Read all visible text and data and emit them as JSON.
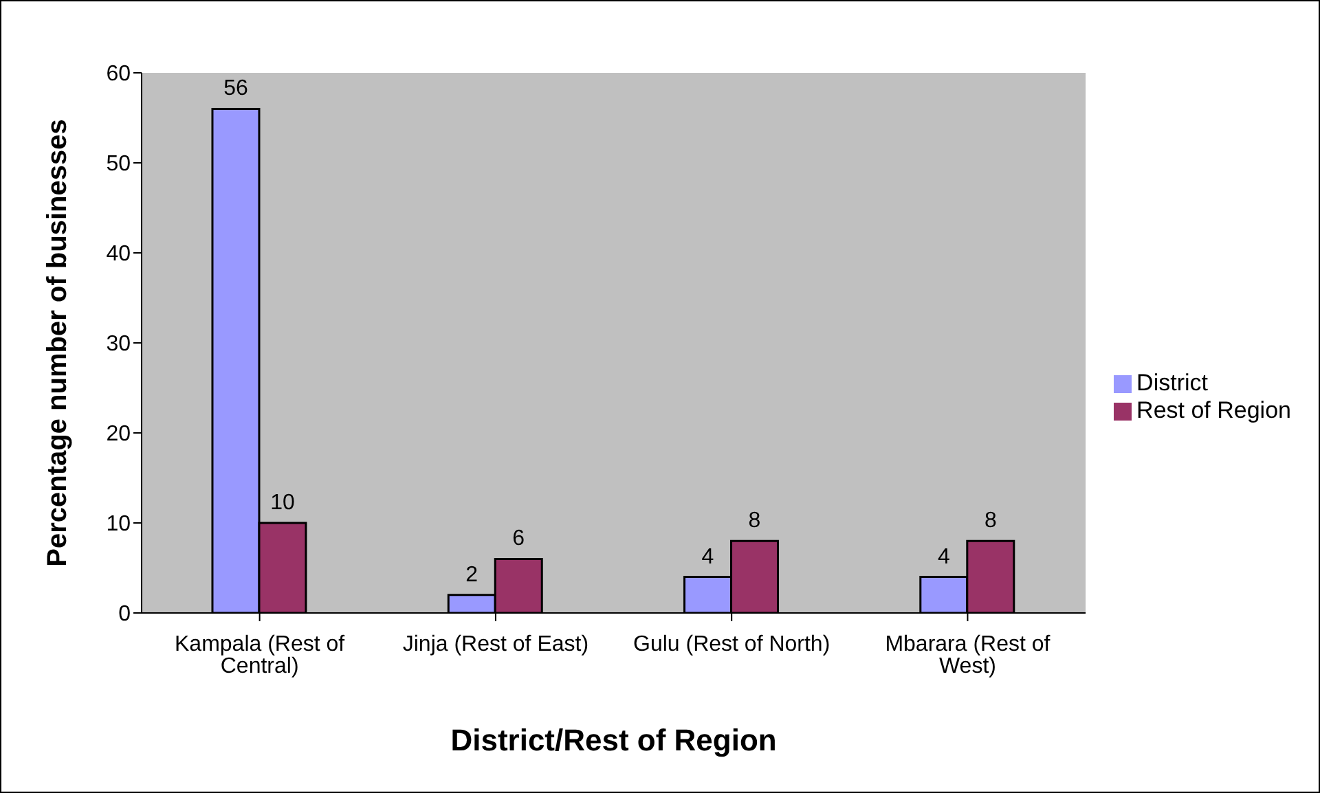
{
  "chart_data": {
    "type": "bar",
    "xlabel": "District/Rest of Region",
    "ylabel": "Percentage number of businesses",
    "categories": [
      "Kampala (Rest of Central)",
      "Jinja (Rest of East)",
      "Gulu (Rest of North)",
      "Mbarara (Rest of West)"
    ],
    "series": [
      {
        "name": "District",
        "color": "#9999ff",
        "values": [
          56,
          2,
          4,
          4
        ]
      },
      {
        "name": "Rest of Region",
        "color": "#993366",
        "values": [
          10,
          6,
          8,
          8
        ]
      }
    ],
    "ylim": [
      0,
      60
    ],
    "yticks": [
      0,
      10,
      20,
      30,
      40,
      50,
      60
    ],
    "grid": false,
    "legend": "right",
    "data_labels": true
  }
}
